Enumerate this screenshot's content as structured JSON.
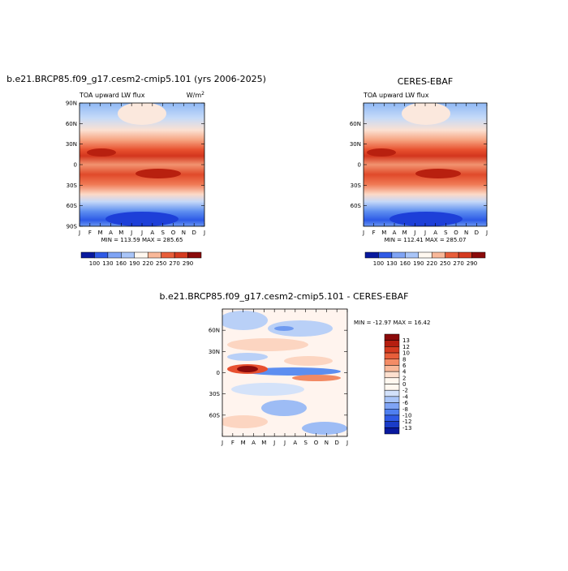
{
  "panels": [
    {
      "title": "b.e21.BRCP85.f09_g17.cesm2-cmip5.101 (yrs 2006-2025)",
      "left_label": "TOA upward LW flux",
      "units": "W/m",
      "units_power": "2",
      "yticks": [
        "90N",
        "60N",
        "30N",
        "0",
        "30S",
        "60S",
        "90S"
      ],
      "xticks": [
        "J",
        "F",
        "M",
        "A",
        "M",
        "J",
        "J",
        "A",
        "S",
        "O",
        "N",
        "D",
        "J"
      ],
      "minmax": "MIN = 113.59  MAX = 285.65",
      "colorbar": [
        "100",
        "130",
        "160",
        "190",
        "220",
        "250",
        "270",
        "290"
      ]
    },
    {
      "title": "CERES-EBAF",
      "left_label": "TOA upward LW flux",
      "yticks": [
        "60N",
        "30N",
        "0",
        "30S",
        "60S"
      ],
      "xticks": [
        "J",
        "F",
        "M",
        "A",
        "M",
        "J",
        "J",
        "A",
        "S",
        "O",
        "N",
        "D",
        "J"
      ],
      "minmax": "MIN = 112.41  MAX = 285.07",
      "colorbar": [
        "100",
        "130",
        "160",
        "190",
        "220",
        "250",
        "270",
        "290"
      ]
    },
    {
      "title": "b.e21.BRCP85.f09_g17.cesm2-cmip5.101 - CERES-EBAF",
      "yticks": [
        "60N",
        "30N",
        "0",
        "30S",
        "60S"
      ],
      "xticks": [
        "J",
        "F",
        "M",
        "A",
        "M",
        "J",
        "J",
        "A",
        "S",
        "O",
        "N",
        "D",
        "J"
      ],
      "minmax": "MIN = -12.97 MAX =  16.42",
      "colorbar": [
        "13",
        "12",
        "10",
        "8",
        "6",
        "4",
        "2",
        "0",
        "-2",
        "-4",
        "-6",
        "-8",
        "-10",
        "-12",
        "-13"
      ]
    }
  ]
}
